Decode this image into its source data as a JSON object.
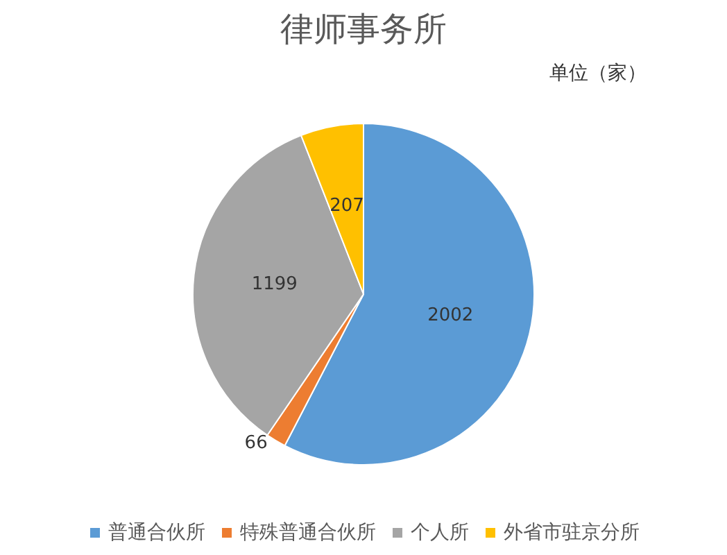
{
  "chart_data": {
    "type": "pie",
    "title": "律师事务所",
    "annotations": [
      "单位（家）"
    ],
    "categories": [
      "普通合伙所",
      "特殊普通合伙所",
      "个人所",
      "外省市驻京分所"
    ],
    "values": [
      2002,
      66,
      1199,
      207
    ],
    "colors": [
      "#5b9bd5",
      "#ed7d31",
      "#a5a5a5",
      "#ffc000"
    ],
    "data_labels": true,
    "legend": "bottom"
  }
}
